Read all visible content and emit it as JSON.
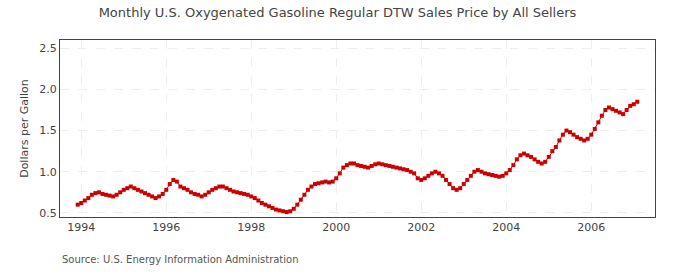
{
  "chart_data": {
    "type": "line",
    "title": "Monthly U.S. Oxygenated Gasoline Regular DTW Sales Price by All Sellers",
    "ylabel": "Dollars per Gallon",
    "annotations": [
      "Source: U.S. Energy Information Administration"
    ],
    "color": "#CC0000",
    "marker": "square",
    "line_style": "solid",
    "grid": true,
    "xlim": [
      1993.5,
      2007.5
    ],
    "xticks": [
      1994,
      1996,
      1998,
      2000,
      2002,
      2004,
      2006
    ],
    "ylim": [
      0.45,
      2.6
    ],
    "yticks": [
      0.5,
      {
        "value": 1.0,
        "label": "1.0"
      },
      1.5,
      {
        "value": 2.0,
        "label": "2.0"
      },
      2.5
    ],
    "x": [
      1993.917,
      1994.0,
      1994.083,
      1994.167,
      1994.25,
      1994.333,
      1994.417,
      1994.5,
      1994.583,
      1994.667,
      1994.75,
      1994.833,
      1994.917,
      1995.0,
      1995.083,
      1995.167,
      1995.25,
      1995.333,
      1995.417,
      1995.5,
      1995.583,
      1995.667,
      1995.75,
      1995.833,
      1995.917,
      1996.0,
      1996.083,
      1996.167,
      1996.25,
      1996.333,
      1996.417,
      1996.5,
      1996.583,
      1996.667,
      1996.75,
      1996.833,
      1996.917,
      1997.0,
      1997.083,
      1997.167,
      1997.25,
      1997.333,
      1997.417,
      1997.5,
      1997.583,
      1997.667,
      1997.75,
      1997.833,
      1997.917,
      1998.0,
      1998.083,
      1998.167,
      1998.25,
      1998.333,
      1998.417,
      1998.5,
      1998.583,
      1998.667,
      1998.75,
      1998.833,
      1998.917,
      1999.0,
      1999.083,
      1999.167,
      1999.25,
      1999.333,
      1999.417,
      1999.5,
      1999.583,
      1999.667,
      1999.75,
      1999.833,
      1999.917,
      2000.0,
      2000.083,
      2000.167,
      2000.25,
      2000.333,
      2000.417,
      2000.5,
      2000.583,
      2000.667,
      2000.75,
      2000.833,
      2000.917,
      2001.0,
      2001.083,
      2001.167,
      2001.25,
      2001.333,
      2001.417,
      2001.5,
      2001.583,
      2001.667,
      2001.75,
      2001.833,
      2001.917,
      2002.0,
      2002.083,
      2002.167,
      2002.25,
      2002.333,
      2002.417,
      2002.5,
      2002.583,
      2002.667,
      2002.75,
      2002.833,
      2002.917,
      2003.0,
      2003.083,
      2003.167,
      2003.25,
      2003.333,
      2003.417,
      2003.5,
      2003.583,
      2003.667,
      2003.75,
      2003.833,
      2003.917,
      2004.0,
      2004.083,
      2004.167,
      2004.25,
      2004.333,
      2004.417,
      2004.5,
      2004.583,
      2004.667,
      2004.75,
      2004.833,
      2004.917,
      2005.0,
      2005.083,
      2005.167,
      2005.25,
      2005.333,
      2005.417,
      2005.5,
      2005.583,
      2005.667,
      2005.75,
      2005.833,
      2005.917,
      2006.0,
      2006.083,
      2006.167,
      2006.25,
      2006.333,
      2006.417,
      2006.5,
      2006.583,
      2006.667,
      2006.75,
      2006.833,
      2006.917,
      2007.0,
      2007.083
    ],
    "values": [
      0.6,
      0.62,
      0.65,
      0.68,
      0.72,
      0.74,
      0.75,
      0.73,
      0.72,
      0.71,
      0.7,
      0.72,
      0.75,
      0.78,
      0.8,
      0.82,
      0.8,
      0.78,
      0.76,
      0.74,
      0.72,
      0.7,
      0.68,
      0.7,
      0.73,
      0.78,
      0.85,
      0.9,
      0.88,
      0.82,
      0.8,
      0.78,
      0.75,
      0.73,
      0.72,
      0.7,
      0.72,
      0.75,
      0.78,
      0.8,
      0.82,
      0.82,
      0.8,
      0.78,
      0.76,
      0.75,
      0.74,
      0.73,
      0.72,
      0.7,
      0.68,
      0.65,
      0.62,
      0.6,
      0.58,
      0.56,
      0.54,
      0.53,
      0.52,
      0.51,
      0.52,
      0.55,
      0.6,
      0.66,
      0.72,
      0.78,
      0.82,
      0.85,
      0.86,
      0.87,
      0.88,
      0.87,
      0.88,
      0.92,
      0.98,
      1.05,
      1.08,
      1.1,
      1.1,
      1.08,
      1.07,
      1.06,
      1.05,
      1.07,
      1.09,
      1.1,
      1.09,
      1.08,
      1.07,
      1.06,
      1.05,
      1.04,
      1.03,
      1.02,
      1.0,
      0.98,
      0.92,
      0.9,
      0.92,
      0.95,
      0.98,
      1.0,
      0.98,
      0.95,
      0.9,
      0.85,
      0.8,
      0.78,
      0.8,
      0.85,
      0.9,
      0.95,
      1.0,
      1.02,
      1.0,
      0.98,
      0.97,
      0.96,
      0.95,
      0.94,
      0.95,
      0.98,
      1.02,
      1.08,
      1.15,
      1.2,
      1.22,
      1.2,
      1.18,
      1.15,
      1.12,
      1.1,
      1.12,
      1.18,
      1.25,
      1.3,
      1.38,
      1.45,
      1.5,
      1.48,
      1.45,
      1.42,
      1.4,
      1.38,
      1.4,
      1.45,
      1.52,
      1.6,
      1.68,
      1.75,
      1.78,
      1.76,
      1.74,
      1.72,
      1.7,
      1.75,
      1.8,
      1.82,
      1.85
    ]
  }
}
